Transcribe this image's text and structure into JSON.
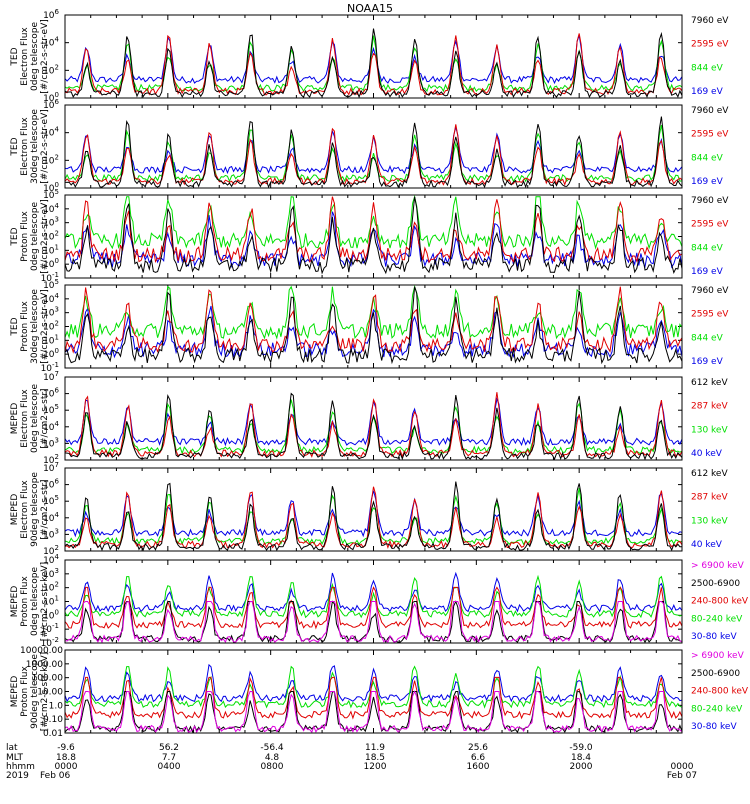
{
  "title": "NOAA15",
  "colors": {
    "black": "#000000",
    "red": "#e00000",
    "green": "#00e000",
    "blue": "#0000e8",
    "magenta": "#e000e0",
    "axis": "#000000"
  },
  "chart_data": [
    {
      "type": "line",
      "ylabel": [
        "TED",
        "Electron Flux",
        "0deg telescope",
        "[#/cm2-s-str-eV]"
      ],
      "yscale": "log",
      "ylim": [
        1,
        1000000
      ],
      "yticks": [
        "10^0",
        "10^2",
        "10^4",
        "10^6"
      ],
      "legend": [
        {
          "label": "7960 eV",
          "color": "black"
        },
        {
          "label": "2595 eV",
          "color": "red"
        },
        {
          "label": "844 eV",
          "color": "green"
        },
        {
          "label": "169 eV",
          "color": "blue"
        }
      ]
    },
    {
      "type": "line",
      "ylabel": [
        "TED",
        "Electron Flux",
        "30deg telescope",
        "[#/cm2-s-str-eV]"
      ],
      "yscale": "log",
      "ylim": [
        1,
        1000000
      ],
      "yticks": [
        "10^0",
        "10^2",
        "10^4",
        "10^6"
      ],
      "legend": [
        {
          "label": "7960 eV",
          "color": "black"
        },
        {
          "label": "2595 eV",
          "color": "red"
        },
        {
          "label": "844 eV",
          "color": "green"
        },
        {
          "label": "169 eV",
          "color": "blue"
        }
      ]
    },
    {
      "type": "line",
      "ylabel": [
        "TED",
        "Proton Flux",
        "0deg telescope",
        "[#/cm2-s-str-eV]"
      ],
      "yscale": "log",
      "ylim": [
        0.1,
        100000
      ],
      "yticks": [
        "10^-1",
        "10^0",
        "10^1",
        "10^2",
        "10^3",
        "10^4",
        "10^5"
      ],
      "legend": [
        {
          "label": "7960 eV",
          "color": "black"
        },
        {
          "label": "2595 eV",
          "color": "red"
        },
        {
          "label": "844 eV",
          "color": "green"
        },
        {
          "label": "169 eV",
          "color": "blue"
        }
      ]
    },
    {
      "type": "line",
      "ylabel": [
        "TED",
        "Proton Flux",
        "30deg telescope",
        "[#/cm2-s-str-eV]"
      ],
      "yscale": "log",
      "ylim": [
        0.1,
        100000
      ],
      "yticks": [
        "10^-1",
        "10^0",
        "10^1",
        "10^2",
        "10^3",
        "10^4",
        "10^5"
      ],
      "legend": [
        {
          "label": "7960 eV",
          "color": "black"
        },
        {
          "label": "2595 eV",
          "color": "red"
        },
        {
          "label": "844 eV",
          "color": "green"
        },
        {
          "label": "169 eV",
          "color": "blue"
        }
      ]
    },
    {
      "type": "line",
      "ylabel": [
        "MEPED",
        "Electron Flux",
        "0deg telescope",
        "[#/cm2-s-str]"
      ],
      "yscale": "log",
      "ylim": [
        100,
        10000000
      ],
      "yticks": [
        "10^2",
        "10^3",
        "10^4",
        "10^5",
        "10^6",
        "10^7"
      ],
      "legend": [
        {
          "label": "612 keV",
          "color": "black"
        },
        {
          "label": "287 keV",
          "color": "red"
        },
        {
          "label": "130 keV",
          "color": "green"
        },
        {
          "label": "40 keV",
          "color": "blue"
        }
      ]
    },
    {
      "type": "line",
      "ylabel": [
        "MEPED",
        "Electron Flux",
        "90deg telescope",
        "[#/cm2-s-str]"
      ],
      "yscale": "log",
      "ylim": [
        100,
        10000000
      ],
      "yticks": [
        "10^2",
        "10^3",
        "10^4",
        "10^5",
        "10^6",
        "10^7"
      ],
      "legend": [
        {
          "label": "612 keV",
          "color": "black"
        },
        {
          "label": "287 keV",
          "color": "red"
        },
        {
          "label": "130 keV",
          "color": "green"
        },
        {
          "label": "40 keV",
          "color": "blue"
        }
      ]
    },
    {
      "type": "line",
      "ylabel": [
        "MEPED",
        "Proton Flux",
        "0deg telescope",
        "[#/cm2-s-str-keV]"
      ],
      "yscale": "log",
      "ylim": [
        0.01,
        10000
      ],
      "yticks": [
        "10^-2",
        "10^-1",
        "10^0",
        "10^1",
        "10^2",
        "10^3",
        "10^4"
      ],
      "legend": [
        {
          "label": "> 6900 keV",
          "color": "magenta"
        },
        {
          "label": "2500-6900",
          "color": "black"
        },
        {
          "label": "240-800 keV",
          "color": "red"
        },
        {
          "label": "80-240 keV",
          "color": "green"
        },
        {
          "label": "30-80 keV",
          "color": "blue"
        }
      ]
    },
    {
      "type": "line",
      "ylabel": [
        "MEPED",
        "Proton Flux",
        "90deg telescope",
        "[#/cm2-s-str-keV]"
      ],
      "yscale": "log",
      "ylim": [
        0.01,
        10000
      ],
      "yticks": [
        "0.01",
        "0.10",
        "1.0",
        "10.00",
        "100.00",
        "1000.00",
        "10000.00"
      ],
      "legend": [
        {
          "label": "> 6900 keV",
          "color": "magenta"
        },
        {
          "label": "2500-6900",
          "color": "black"
        },
        {
          "label": "240-800 keV",
          "color": "red"
        },
        {
          "label": "80-240 keV",
          "color": "green"
        },
        {
          "label": "30-80 keV",
          "color": "blue"
        }
      ]
    }
  ],
  "xaxis": {
    "row_labels": [
      "lat",
      "MLT",
      "hhmm",
      "2019"
    ],
    "ticks": [
      {
        "lat": "-9.6",
        "mlt": "18.8",
        "hhmm": "0000",
        "date": "Feb 06"
      },
      {
        "lat": "56.2",
        "mlt": "7.7",
        "hhmm": "0400",
        "date": ""
      },
      {
        "lat": "-56.4",
        "mlt": "4.8",
        "hhmm": "0800",
        "date": ""
      },
      {
        "lat": "11.9",
        "mlt": "18.5",
        "hhmm": "1200",
        "date": ""
      },
      {
        "lat": "25.6",
        "mlt": "6.6",
        "hhmm": "1600",
        "date": ""
      },
      {
        "lat": "-59.0",
        "mlt": "18.4",
        "hhmm": "2000",
        "date": ""
      },
      {
        "lat": "",
        "mlt": "",
        "hhmm": "0000",
        "date": "Feb 07"
      }
    ]
  }
}
